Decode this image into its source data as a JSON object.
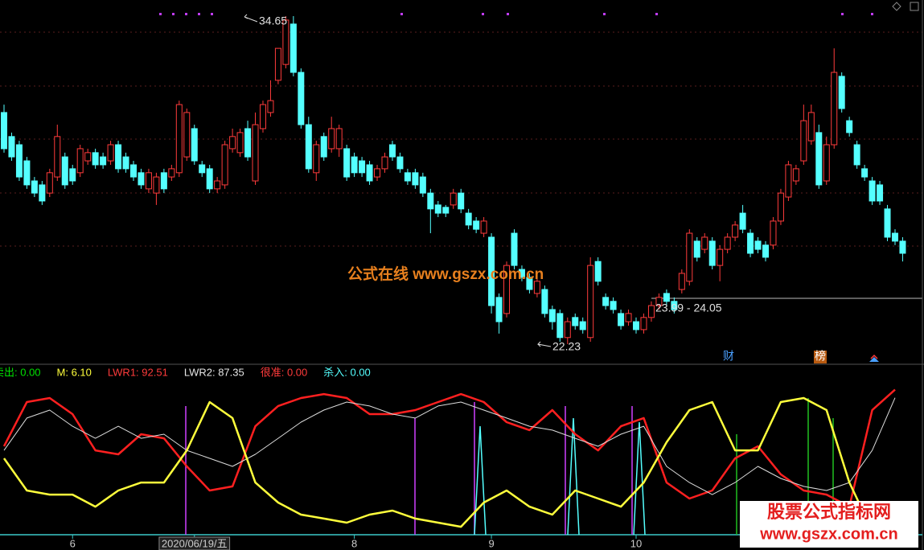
{
  "chart_data": [
    {
      "type": "candlestick",
      "up_color": "#ff3b3b",
      "down_color": "#54ffff",
      "ylim": [
        21.56,
        35.26
      ],
      "open": [
        31.0,
        30.09,
        29.78,
        29.17,
        28.41,
        28.26,
        27.95,
        28.56,
        29.32,
        28.87,
        28.72,
        29.17,
        29.48,
        29.32,
        29.17,
        29.78,
        29.32,
        29.02,
        28.72,
        28.11,
        27.95,
        28.72,
        28.56,
        28.72,
        29.32,
        30.39,
        29.02,
        28.87,
        28.11,
        28.26,
        29.63,
        29.48,
        30.39,
        28.41,
        30.39,
        31.0,
        32.22,
        32.82,
        34.35,
        32.52,
        30.54,
        28.72,
        30.09,
        29.63,
        29.63,
        29.63,
        29.32,
        29.17,
        29.02,
        28.56,
        28.87,
        29.78,
        29.32,
        28.72,
        28.72,
        28.56,
        27.95,
        27.5,
        27.41,
        27.5,
        27.95,
        27.19,
        26.89,
        26.43,
        26.28,
        24.0,
        23.39,
        26.43,
        25.06,
        24.76,
        24.15,
        24.3,
        23.54,
        23.39,
        22.48,
        23.24,
        23.08,
        22.48,
        25.36,
        24.0,
        23.85,
        23.39,
        23.08,
        23.08,
        22.78,
        23.24,
        23.69,
        24.15,
        23.85,
        24.3,
        24.61,
        26.13,
        25.82,
        26.13,
        25.21,
        25.82,
        26.28,
        27.19,
        26.43,
        26.13,
        25.98,
        25.98,
        26.89,
        27.8,
        28.41,
        29.17,
        29.93,
        30.24,
        28.41,
        29.78,
        32.37,
        30.69,
        29.78,
        28.87,
        28.41,
        28.26,
        27.35,
        26.43,
        26.13
      ],
      "high": [
        31.3,
        30.24,
        29.93,
        29.32,
        28.56,
        28.41,
        28.87,
        30.54,
        29.48,
        29.02,
        29.78,
        29.63,
        29.63,
        29.48,
        29.93,
        29.93,
        29.48,
        29.17,
        28.87,
        28.87,
        28.72,
        28.87,
        29.02,
        31.45,
        31.15,
        30.54,
        29.17,
        29.02,
        28.56,
        29.93,
        30.39,
        30.39,
        30.69,
        31.0,
        31.45,
        32.22,
        33.43,
        34.65,
        34.65,
        32.67,
        30.84,
        29.93,
        30.24,
        30.84,
        30.54,
        29.78,
        29.48,
        29.32,
        29.17,
        29.02,
        29.48,
        29.93,
        29.48,
        28.87,
        28.87,
        28.72,
        28.11,
        27.65,
        27.5,
        28.11,
        28.11,
        27.35,
        27.04,
        27.04,
        26.43,
        24.15,
        25.36,
        26.58,
        25.21,
        24.91,
        24.76,
        24.45,
        23.69,
        23.54,
        23.24,
        23.39,
        23.24,
        25.52,
        25.52,
        24.15,
        24.0,
        23.54,
        23.54,
        23.24,
        23.39,
        23.85,
        24.15,
        24.3,
        24.0,
        25.06,
        26.58,
        26.28,
        26.43,
        26.28,
        25.98,
        26.43,
        26.89,
        27.5,
        26.58,
        26.28,
        26.13,
        27.04,
        28.11,
        29.17,
        29.02,
        31.3,
        31.3,
        30.54,
        30.09,
        33.43,
        32.52,
        30.84,
        29.93,
        29.02,
        28.56,
        28.41,
        27.5,
        26.58,
        26.28
      ],
      "low": [
        29.48,
        29.17,
        28.41,
        28.11,
        27.8,
        27.5,
        27.8,
        28.41,
        28.11,
        28.26,
        28.56,
        29.02,
        28.87,
        28.87,
        29.02,
        28.72,
        28.72,
        28.41,
        28.11,
        27.95,
        27.5,
        27.95,
        28.41,
        28.56,
        29.17,
        29.02,
        28.56,
        27.95,
        27.95,
        28.11,
        29.48,
        29.32,
        29.17,
        28.26,
        30.24,
        30.84,
        32.07,
        32.67,
        32.37,
        30.39,
        28.72,
        28.41,
        29.17,
        29.48,
        29.32,
        28.41,
        28.56,
        28.56,
        28.26,
        28.41,
        28.72,
        29.17,
        28.72,
        28.26,
        28.11,
        27.8,
        26.43,
        27.04,
        27.04,
        27.35,
        27.19,
        26.58,
        26.43,
        26.28,
        23.39,
        22.63,
        23.24,
        25.06,
        24.61,
        24.15,
        24.0,
        23.24,
        22.78,
        22.32,
        22.23,
        22.78,
        22.63,
        22.32,
        24.45,
        23.54,
        23.39,
        22.78,
        22.93,
        22.63,
        22.63,
        23.08,
        23.54,
        23.69,
        23.39,
        24.15,
        24.45,
        25.36,
        25.67,
        25.06,
        24.61,
        25.67,
        26.13,
        26.43,
        25.52,
        25.67,
        25.36,
        25.82,
        26.74,
        27.65,
        28.26,
        29.02,
        29.78,
        28.11,
        28.26,
        29.63,
        31.0,
        30.09,
        28.87,
        28.41,
        27.5,
        27.5,
        26.13,
        25.98,
        25.36
      ],
      "close": [
        29.63,
        29.32,
        28.56,
        28.26,
        27.95,
        27.65,
        28.72,
        30.09,
        28.26,
        28.41,
        29.63,
        29.48,
        29.02,
        29.02,
        29.78,
        28.87,
        28.87,
        28.56,
        28.26,
        28.72,
        28.56,
        28.11,
        28.87,
        31.3,
        31.0,
        29.17,
        28.72,
        28.11,
        28.41,
        29.78,
        30.09,
        30.24,
        29.32,
        30.54,
        31.3,
        31.45,
        33.43,
        34.5,
        32.52,
        30.54,
        28.87,
        29.78,
        29.32,
        30.39,
        30.39,
        28.56,
        28.72,
        28.72,
        28.41,
        28.87,
        29.32,
        29.32,
        28.87,
        28.41,
        28.26,
        27.95,
        27.35,
        27.19,
        27.19,
        27.95,
        27.35,
        26.74,
        26.58,
        26.89,
        23.69,
        23.08,
        25.21,
        25.21,
        24.76,
        24.3,
        24.61,
        23.39,
        23.08,
        22.48,
        23.08,
        22.93,
        22.78,
        25.21,
        24.61,
        23.69,
        23.54,
        22.93,
        23.39,
        22.78,
        23.24,
        23.69,
        24.0,
        23.85,
        23.54,
        24.91,
        26.43,
        25.52,
        26.28,
        25.21,
        25.82,
        26.28,
        26.74,
        26.58,
        25.67,
        25.82,
        25.52,
        26.89,
        27.95,
        29.02,
        28.87,
        30.69,
        31.0,
        28.26,
        29.78,
        32.52,
        31.15,
        30.24,
        29.02,
        28.56,
        27.65,
        27.65,
        26.28,
        26.13,
        25.67
      ],
      "annotations": [
        "34.65",
        "22.23",
        "23.99 - 24.05"
      ],
      "watermark": "公式在线  www.gszx.com.cn",
      "badges": [
        "财",
        "榜"
      ]
    },
    {
      "type": "line",
      "legend": [
        {
          "text": "卖出: 0.00",
          "color": "#00e000"
        },
        {
          "text": "M: 6.10",
          "color": "#ffff3c"
        },
        {
          "text": "LWR1: 92.51",
          "color": "#ff3b3b"
        },
        {
          "text": "LWR2: 87.35",
          "color": "#e6e6e6"
        },
        {
          "text": "很准: 0.00",
          "color": "#ff3b3b"
        },
        {
          "text": "杀入: 0.00",
          "color": "#54ffff"
        }
      ],
      "ylim": [
        0,
        100
      ],
      "x": [
        0,
        3,
        6,
        9,
        12,
        15,
        18,
        21,
        24,
        27,
        30,
        33,
        36,
        39,
        42,
        45,
        48,
        51,
        54,
        57,
        60,
        63,
        66,
        69,
        72,
        75,
        78,
        81,
        84,
        87,
        90,
        93,
        96,
        99,
        102,
        105,
        108,
        111,
        114,
        117
      ],
      "series": [
        {
          "color": "#ff2020",
          "width": 2.5,
          "values": [
            56.4,
            84.6,
            87.2,
            76.9,
            53.8,
            51.3,
            64.1,
            61.5,
            43.6,
            28.2,
            30.8,
            69.2,
            82.1,
            87.2,
            89.7,
            87.2,
            76.9,
            76.9,
            79.5,
            84.6,
            89.7,
            84.6,
            71.8,
            66.7,
            79.5,
            64.1,
            53.8,
            69.2,
            74.4,
            33.3,
            23.1,
            28.2,
            48.7,
            56.4,
            38.5,
            28.2,
            25.6,
            17.9,
            79.5,
            92.51
          ]
        },
        {
          "color": "#dcdcdc",
          "width": 1,
          "values": [
            53.8,
            74.4,
            79.5,
            69.2,
            61.5,
            69.2,
            61.5,
            64.1,
            53.8,
            48.7,
            43.6,
            51.3,
            61.5,
            71.8,
            79.5,
            84.6,
            82.1,
            76.9,
            74.4,
            82.1,
            84.6,
            79.5,
            74.4,
            69.2,
            66.7,
            61.5,
            56.4,
            64.1,
            69.2,
            43.6,
            33.3,
            25.6,
            33.3,
            43.6,
            35.9,
            30.8,
            28.2,
            33.3,
            53.8,
            87.35
          ]
        },
        {
          "color": "#ffff3c",
          "width": 2.5,
          "values": [
            48.7,
            28.2,
            25.6,
            25.6,
            17.9,
            28.2,
            33.3,
            33.3,
            53.8,
            84.6,
            74.4,
            33.3,
            20.5,
            12.8,
            10.3,
            7.7,
            12.8,
            15.4,
            10.3,
            7.7,
            5.1,
            20.5,
            28.2,
            17.9,
            12.8,
            28.2,
            23.1,
            17.9,
            33.3,
            59.0,
            79.5,
            84.6,
            53.8,
            53.8,
            84.6,
            87.2,
            79.5,
            33.3,
            2.6,
            6.1
          ]
        }
      ],
      "x_tick_labels": [
        {
          "value": 9,
          "label": "6"
        },
        {
          "value": 25,
          "label": "2020/06/19/五"
        },
        {
          "value": 46,
          "label": "8"
        },
        {
          "value": 64,
          "label": "9"
        },
        {
          "value": 83,
          "label": "10"
        },
        {
          "value": 97,
          "label": "1"
        }
      ],
      "watermark": [
        "股票公式指标网",
        "www.gszx.com.cn"
      ]
    }
  ]
}
